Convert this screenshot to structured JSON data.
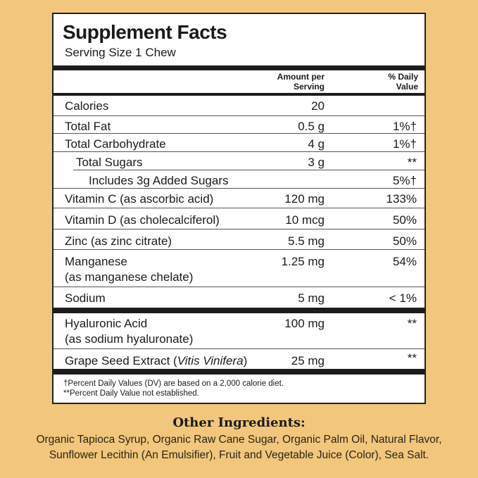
{
  "title": "Supplement Facts",
  "serving_size": "Serving Size 1 Chew",
  "headers": {
    "amount": "Amount per",
    "amount2": "Serving",
    "dv": "% Daily",
    "dv2": "Value"
  },
  "rows": [
    {
      "name": "Calories",
      "amount": "20",
      "dv": ""
    },
    {
      "name": "Total Fat",
      "amount": "0.5 g",
      "dv": "1%†"
    },
    {
      "name": "Total Carbohydrate",
      "amount": "4 g",
      "dv": "1%†"
    },
    {
      "name": "Total Sugars",
      "amount": "3 g",
      "dv": "**"
    },
    {
      "name": "Includes 3g Added Sugars",
      "amount": "",
      "dv": "5%†"
    },
    {
      "name": "Vitamin C (as ascorbic acid)",
      "amount": "120 mg",
      "dv": "133%"
    },
    {
      "name": "Vitamin D (as cholecalciferol)",
      "amount": "10 mcg",
      "dv": "50%"
    },
    {
      "name": "Zinc (as zinc citrate)",
      "amount": "5.5 mg",
      "dv": "50%"
    },
    {
      "name": "Manganese",
      "name2": "(as manganese chelate)",
      "amount": "1.25 mg",
      "dv": "54%"
    },
    {
      "name": "Sodium",
      "amount": "5 mg",
      "dv": "< 1%"
    },
    {
      "name": "Hyaluronic Acid",
      "name2": "(as sodium hyaluronate)",
      "amount": "100 mg",
      "dv": "**"
    },
    {
      "name": "Grape Seed Extract (",
      "name_italic": "Vitis Vinifera",
      "name_end": ")",
      "amount": "25 mg",
      "dv": "**"
    }
  ],
  "footnotes": [
    "†Percent Daily Values (DV) are based on a 2,000 calorie diet.",
    "**Percent Daily Value not established."
  ],
  "other_ingredients": {
    "title": "Other Ingredients:",
    "line1": "Organic Tapioca Syrup, Organic Raw Cane Sugar, Organic Palm Oil, Natural Flavor,",
    "line2": "Sunflower Lecithin (An Emulsifier), Fruit and Vegetable Juice (Color), Sea Salt."
  },
  "colors": {
    "background": "#f2c67c",
    "panel": "#ffffff",
    "rule": "#1c1c1c"
  }
}
